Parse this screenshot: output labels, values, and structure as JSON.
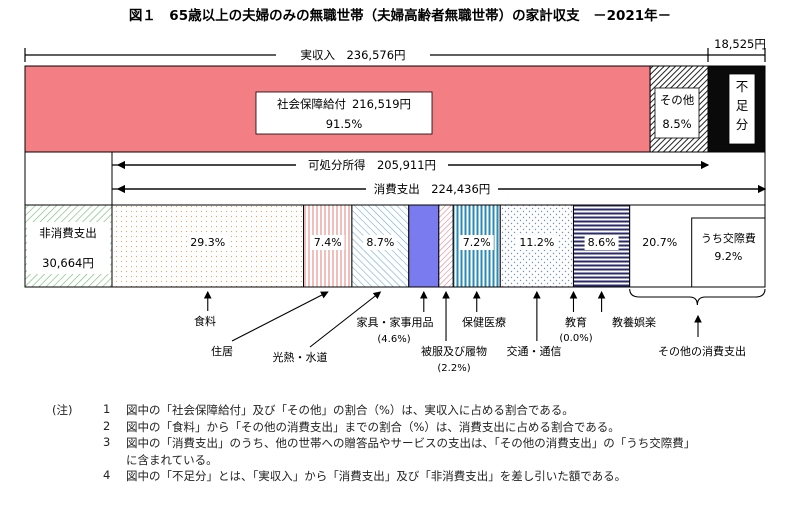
{
  "chart_data": {
    "type": "bar",
    "title": "図１　65歳以上の夫婦のみの無職世帯（夫婦高齢者無職世帯）の家計収支　－2021年－",
    "income": {
      "total_label": "実収入　236,576円",
      "shortfall_value_label": "18,525円",
      "shortfall_label": "不足分",
      "segments": [
        {
          "name": "社会保障給付",
          "value": 216519,
          "value_label": "216,519円",
          "pct_label": "91.5%",
          "color": "#f08080"
        },
        {
          "name": "その他",
          "value": 20057,
          "pct_label": "8.5%",
          "color": "#555555"
        },
        {
          "name": "不足分",
          "value": 18525,
          "color": "#000000"
        }
      ]
    },
    "disposable_label": "可処分所得　205,911円",
    "consumption_label": "消費支出　224,436円",
    "expenditure": {
      "non_consumption": {
        "name": "非消費支出",
        "value": 30664,
        "value_label": "30,664円",
        "color": "#e8f4e8"
      },
      "consumption_total": 224436,
      "items": [
        {
          "name": "食料",
          "pct": 29.3,
          "label": "29.3%",
          "color": "#fff4ea"
        },
        {
          "name": "住居",
          "pct": 7.4,
          "label": "7.4%",
          "color": "#f4d4d4"
        },
        {
          "name": "光熱・水道",
          "pct": 8.7,
          "label": "8.7%",
          "color": "#d8eaf2"
        },
        {
          "name": "家具・家事用品",
          "pct": 4.6,
          "label": "(4.6%)",
          "color": "#7f7fee"
        },
        {
          "name": "被服及び履物",
          "pct": 2.2,
          "label": "(2.2%)",
          "color": "#f4c8c8"
        },
        {
          "name": "保健医療",
          "pct": 7.2,
          "label": "7.2%",
          "color": "#4aa6c8"
        },
        {
          "name": "交通・通信",
          "pct": 11.2,
          "label": "11.2%",
          "color": "#eef2fa"
        },
        {
          "name": "教育",
          "pct": 0.0,
          "label": "(0.0%)",
          "color": "#ffffff"
        },
        {
          "name": "教養娯楽",
          "pct": 8.6,
          "label": "8.6%",
          "color": "#3a3a7a"
        },
        {
          "name": "その他の消費支出",
          "pct": 20.7,
          "label": "20.7%",
          "color": "#ffffff"
        }
      ],
      "kousai": {
        "name": "うち交際費",
        "label": "9.2%"
      }
    },
    "notes_head": "(注)",
    "notes": [
      {
        "num": "1",
        "text": "図中の「社会保障給付」及び「その他」の割合（%）は、実収入に占める割合である。"
      },
      {
        "num": "2",
        "text": "図中の「食料」から「その他の消費支出」までの割合（%）は、消費支出に占める割合である。"
      },
      {
        "num": "3",
        "text": "図中の「消費支出」のうち、他の世帯への贈答品やサービスの支出は、「その他の消費支出」の「うち交際費」"
      },
      {
        "num": "",
        "text": "に含まれている。"
      },
      {
        "num": "4",
        "text": "図中の「不足分」とは、「実収入」から「消費支出」及び「非消費支出」を差し引いた額である。"
      }
    ]
  }
}
